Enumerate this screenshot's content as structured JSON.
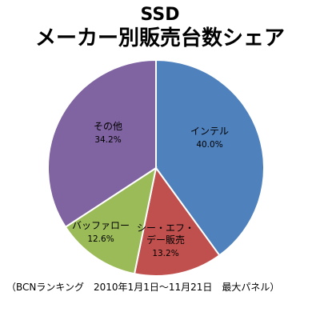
{
  "chart_data": {
    "type": "pie",
    "title": "SSD",
    "subtitle": "メーカー別販売台数シェア",
    "slices": [
      {
        "label": "インテル",
        "value": 40.0,
        "value_label": "40.0%",
        "color": "#4f81bd"
      },
      {
        "label": "シー・エフ・デー販売",
        "label_lines": [
          "シー・エフ・",
          "デー販売"
        ],
        "value": 13.2,
        "value_label": "13.2%",
        "color": "#c0504d"
      },
      {
        "label": "バッファロー",
        "value": 12.6,
        "value_label": "12.6%",
        "color": "#9bbb59"
      },
      {
        "label": "その他",
        "value": 34.2,
        "value_label": "34.2%",
        "color": "#8064a2"
      }
    ],
    "start_angle": "12 o'clock",
    "direction": "clockwise",
    "legend": "none",
    "note": "（BCNランキング　2010年1月1日〜11月21日　最大パネル）"
  }
}
